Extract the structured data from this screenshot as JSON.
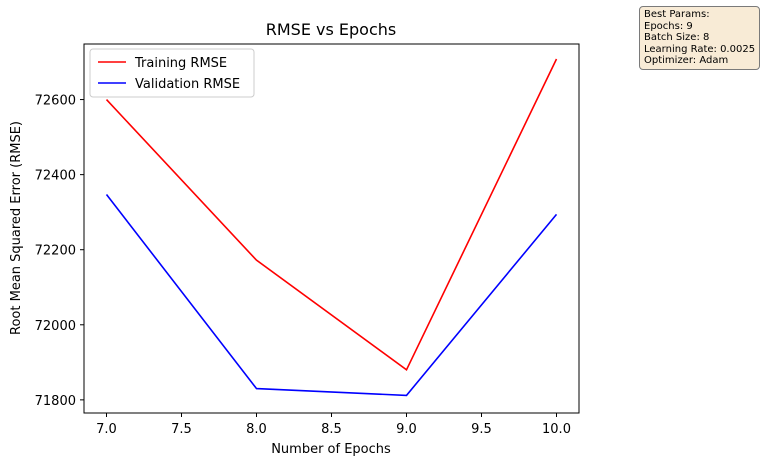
{
  "chart_data": {
    "type": "line",
    "title": "RMSE vs Epochs",
    "xlabel": "Number of Epochs",
    "ylabel": "Root Mean Squared Error (RMSE)",
    "x": [
      7.0,
      8.0,
      9.0,
      10.0
    ],
    "xlim": [
      6.85,
      10.15
    ],
    "ylim": [
      71765,
      72748
    ],
    "xticks": [
      "7.0",
      "7.5",
      "8.0",
      "8.5",
      "9.0",
      "9.5",
      "10.0"
    ],
    "yticks": [
      "71800",
      "72000",
      "72200",
      "72400",
      "72600"
    ],
    "grid": false,
    "legend_position": "top-left",
    "series": [
      {
        "name": "Training RMSE",
        "color": "#ff0000",
        "values": [
          72600,
          72172,
          71880,
          72708
        ]
      },
      {
        "name": "Validation RMSE",
        "color": "#0000ff",
        "values": [
          72347,
          71830,
          71812,
          72294
        ]
      }
    ]
  },
  "annotation": {
    "lines": [
      "Best Params:",
      "Epochs: 9",
      "Batch Size: 8",
      "Learning Rate: 0.0025",
      "Optimizer: Adam"
    ]
  }
}
